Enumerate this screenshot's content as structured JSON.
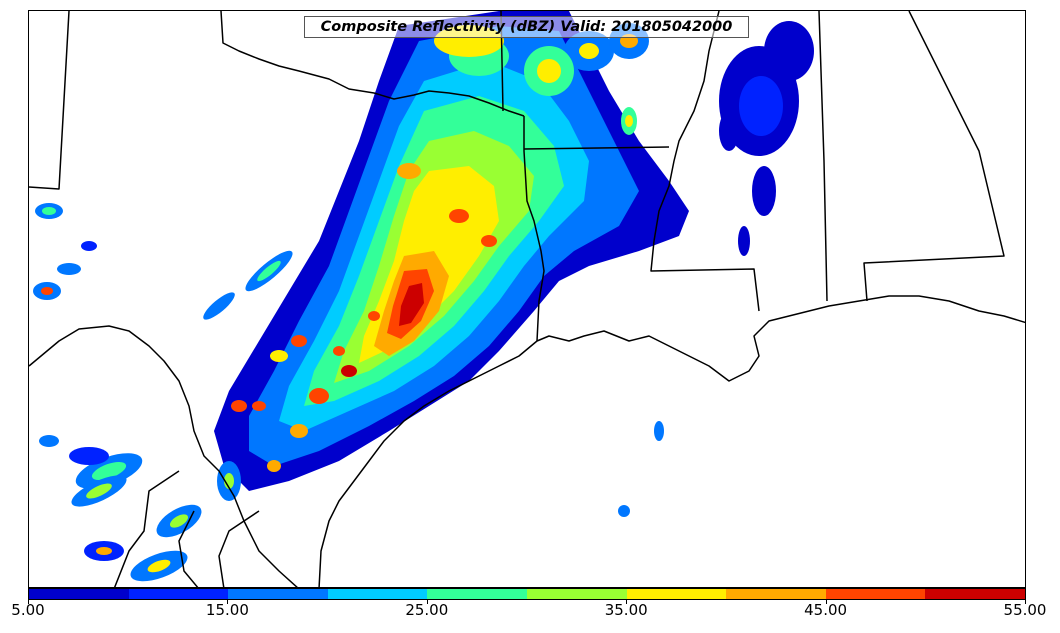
{
  "title": "Composite Reflectivity (dBZ) Valid: 201805042000",
  "colorbar": {
    "unit": "dBZ",
    "colors": [
      "#0000cc",
      "#0022ff",
      "#0077ff",
      "#00ccff",
      "#33ff99",
      "#99ff33",
      "#ffee00",
      "#ffaa00",
      "#ff4400",
      "#cc0000"
    ],
    "labels": [
      "5.00",
      "15.00",
      "25.00",
      "35.00",
      "45.00",
      "55.00"
    ]
  },
  "layers": {
    "map_background": "#ffffff",
    "boundary_color": "#000000"
  }
}
